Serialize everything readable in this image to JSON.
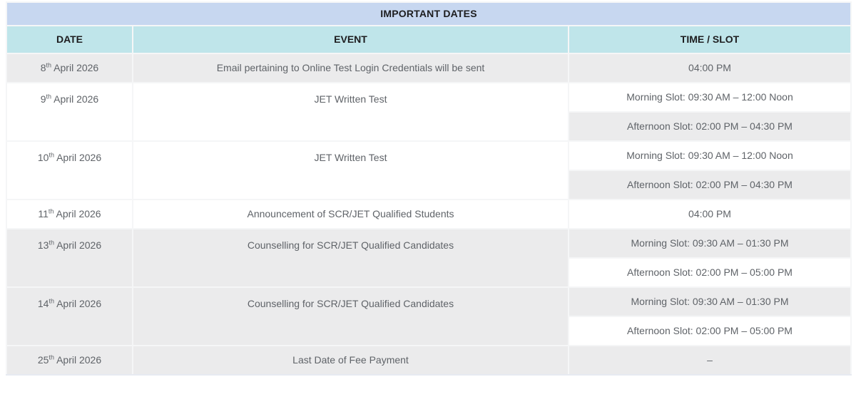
{
  "table": {
    "title": "IMPORTANT DATES",
    "columns": [
      "DATE",
      "EVENT",
      "TIME / SLOT"
    ],
    "rows": [
      {
        "date": {
          "day": "8",
          "ordinal": "th",
          "rest": "April 2026"
        },
        "event": "Email pertaining to Online Test Login Credentials will be sent",
        "slots": [
          "04:00 PM"
        ]
      },
      {
        "date": {
          "day": "9",
          "ordinal": "th",
          "rest": "April 2026"
        },
        "event": "JET Written Test",
        "slots": [
          "Morning Slot: 09:30 AM – 12:00 Noon",
          "Afternoon Slot: 02:00 PM – 04:30 PM"
        ]
      },
      {
        "date": {
          "day": "10",
          "ordinal": "th",
          "rest": "April 2026"
        },
        "event": "JET Written Test",
        "slots": [
          "Morning Slot: 09:30 AM – 12:00 Noon",
          "Afternoon Slot: 02:00 PM – 04:30 PM"
        ]
      },
      {
        "date": {
          "day": "11",
          "ordinal": "th",
          "rest": "April 2026"
        },
        "event": "Announcement of SCR/JET Qualified Students",
        "slots": [
          "04:00 PM"
        ]
      },
      {
        "date": {
          "day": "13",
          "ordinal": "th",
          "rest": "April 2026"
        },
        "event": "Counselling for SCR/JET Qualified Candidates",
        "slots": [
          "Morning Slot: 09:30 AM – 01:30 PM",
          "Afternoon Slot: 02:00 PM – 05:00 PM"
        ]
      },
      {
        "date": {
          "day": "14",
          "ordinal": "th",
          "rest": "April 2026"
        },
        "event": "Counselling for SCR/JET Qualified Candidates",
        "slots": [
          "Morning Slot: 09:30 AM – 01:30 PM",
          "Afternoon Slot: 02:00 PM – 05:00 PM"
        ]
      },
      {
        "date": {
          "day": "25",
          "ordinal": "th",
          "rest": "April 2026"
        },
        "event": "Last Date of Fee Payment",
        "slots": [
          "–"
        ]
      }
    ]
  },
  "colors": {
    "title_bg": "#c7d7f0",
    "header_bg": "#bfe5ea",
    "stripe_bg": "#ebebec",
    "text": "#5f6368",
    "heading_text": "#1d1d1f"
  }
}
